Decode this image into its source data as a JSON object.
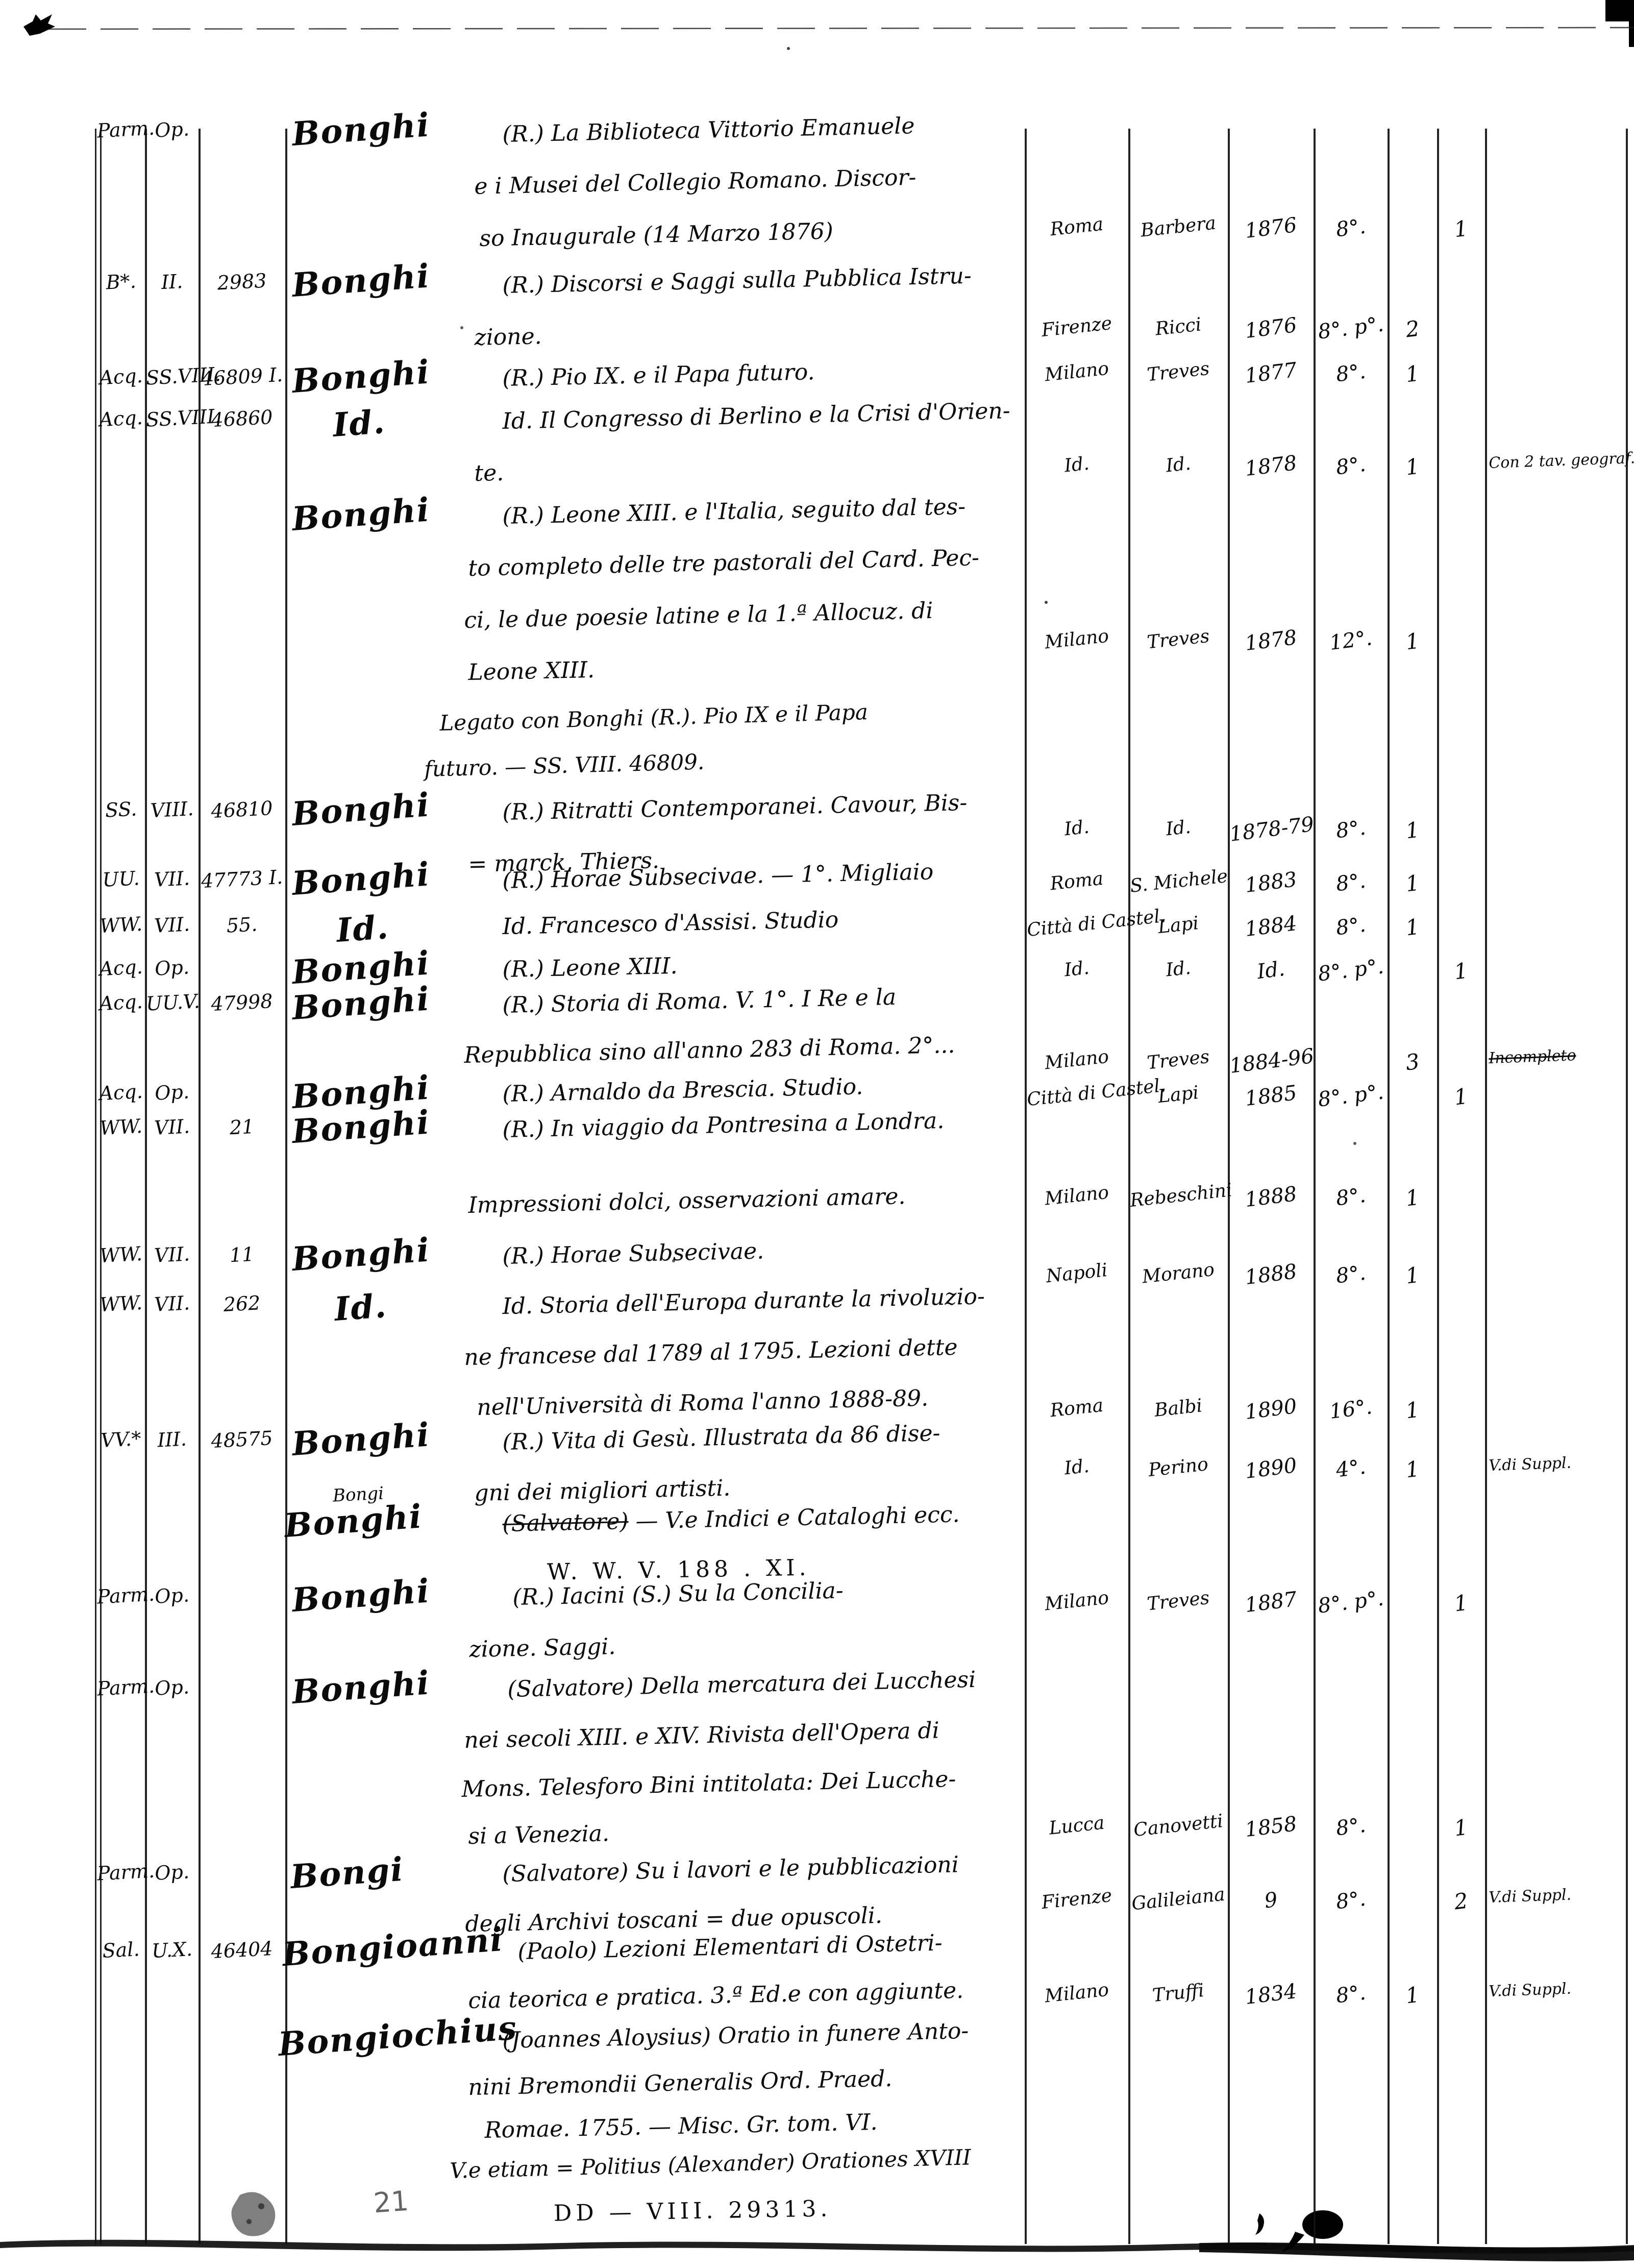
{
  "document": {
    "kind": "handwritten library catalog ledger page",
    "pencil_page_number": "21"
  },
  "entries": [
    {
      "shelfmark": {
        "series": "Parm.",
        "section": "Op.",
        "number": ""
      },
      "author": "Bonghi",
      "title_lines": [
        "(R.) La Biblioteca Vittorio Emanuele",
        "e i Musei del Collegio Romano. Discor-",
        "so Inaugurale (14 Marzo 1876)"
      ],
      "imprint": {
        "place": "Roma",
        "publisher": "Barbera",
        "year": "1876",
        "format": "8°."
      },
      "copies": {
        "volumes": "",
        "opuscoli": "1"
      },
      "note": ""
    },
    {
      "shelfmark": {
        "series": "B*.",
        "section": "II.",
        "number": "2983"
      },
      "author": "Bonghi",
      "title_lines": [
        "(R.) Discorsi e Saggi sulla Pubblica Istru-",
        "zione."
      ],
      "imprint": {
        "place": "Firenze",
        "publisher": "Ricci",
        "year": "1876",
        "format": "8°. p°."
      },
      "copies": {
        "volumes": "2",
        "opuscoli": ""
      },
      "note": ""
    },
    {
      "shelfmark": {
        "series": "Acq.",
        "section": "SS.VIII.",
        "number": "46809 I."
      },
      "author": "Bonghi",
      "title_lines": [
        "(R.) Pio IX. e il Papa futuro."
      ],
      "imprint": {
        "place": "Milano",
        "publisher": "Treves",
        "year": "1877",
        "format": "8°."
      },
      "copies": {
        "volumes": "1",
        "opuscoli": ""
      },
      "note": ""
    },
    {
      "shelfmark": {
        "series": "Acq.",
        "section": "SS.VIII.",
        "number": "46860"
      },
      "author": "Id.",
      "title_lines": [
        "Id. Il Congresso di Berlino e la Crisi d'Orien-",
        "te."
      ],
      "imprint": {
        "place": "Id.",
        "publisher": "Id.",
        "year": "1878",
        "format": "8°."
      },
      "copies": {
        "volumes": "1",
        "opuscoli": ""
      },
      "note": "Con 2 tav. geograf."
    },
    {
      "shelfmark": {
        "series": "",
        "section": "",
        "number": ""
      },
      "author": "Bonghi",
      "title_lines": [
        "(R.) Leone XIII. e l'Italia, seguito dal tes-",
        "to completo delle tre pastorali del Card. Pec-",
        "ci, le due poesie latine e la 1.ª Allocuz. di",
        "Leone XIII."
      ],
      "annotation_lines": [
        "Legato con Bonghi (R.). Pio IX e il Papa",
        "futuro. — SS. VIII. 46809."
      ],
      "imprint": {
        "place": "Milano",
        "publisher": "Treves",
        "year": "1878",
        "format": "12°."
      },
      "copies": {
        "volumes": "1",
        "opuscoli": ""
      },
      "note": ""
    },
    {
      "shelfmark": {
        "series": "SS.",
        "section": "VIII.",
        "number": "46810"
      },
      "author": "Bonghi",
      "title_lines": [
        "(R.) Ritratti Contemporanei. Cavour, Bis-",
        "= marck, Thiers."
      ],
      "imprint": {
        "place": "Id.",
        "publisher": "Id.",
        "year": "1878-79",
        "format": "8°."
      },
      "copies": {
        "volumes": "1",
        "opuscoli": ""
      },
      "note": ""
    },
    {
      "shelfmark": {
        "series": "UU.",
        "section": "VII.",
        "number": "47773 I."
      },
      "author": "Bonghi",
      "title_lines": [
        "(R.) Horae Subsecivae. — 1°. Migliaio"
      ],
      "imprint": {
        "place": "Roma",
        "publisher": "S. Michele",
        "year": "1883",
        "format": "8°."
      },
      "copies": {
        "volumes": "1",
        "opuscoli": ""
      },
      "note": ""
    },
    {
      "shelfmark": {
        "series": "WW.",
        "section": "VII.",
        "number": "55."
      },
      "author": "Id.",
      "title_lines": [
        "Id. Francesco d'Assisi. Studio"
      ],
      "imprint": {
        "place": "Città di Castel.",
        "publisher": "Lapi",
        "year": "1884",
        "format": "8°."
      },
      "copies": {
        "volumes": "1",
        "opuscoli": ""
      },
      "note": ""
    },
    {
      "shelfmark": {
        "series": "Acq.",
        "section": "Op.",
        "number": ""
      },
      "author": "Bonghi",
      "title_lines": [
        "(R.) Leone XIII."
      ],
      "imprint": {
        "place": "Id.",
        "publisher": "Id.",
        "year": "Id.",
        "format": "8°. p°."
      },
      "copies": {
        "volumes": "",
        "opuscoli": "1"
      },
      "note": ""
    },
    {
      "shelfmark": {
        "series": "Acq.",
        "section": "UU.V.",
        "number": "47998"
      },
      "author": "Bonghi",
      "title_lines": [
        "(R.) Storia di Roma. V. 1°. I Re e la",
        "Repubblica sino all'anno 283 di Roma. 2°..."
      ],
      "imprint": {
        "place": "Milano",
        "publisher": "Treves",
        "year": "1884-96",
        "format": ""
      },
      "copies": {
        "volumes": "3",
        "opuscoli": ""
      },
      "note": "Incompleto",
      "note_struck": true
    },
    {
      "shelfmark": {
        "series": "Acq.",
        "section": "Op.",
        "number": ""
      },
      "author": "Bonghi",
      "title_lines": [
        "(R.) Arnaldo da Brescia. Studio."
      ],
      "imprint": {
        "place": "Città di Castel.",
        "publisher": "Lapi",
        "year": "1885",
        "format": "8°. p°."
      },
      "copies": {
        "volumes": "",
        "opuscoli": "1"
      },
      "note": ""
    },
    {
      "shelfmark": {
        "series": "WW.",
        "section": "VII.",
        "number": "21"
      },
      "author": "Bonghi",
      "title_lines": [
        "(R.) In viaggio da Pontresina a Londra.",
        "Impressioni dolci, osservazioni amare."
      ],
      "imprint": {
        "place": "Milano",
        "publisher": "Rebeschini",
        "year": "1888",
        "format": "8°."
      },
      "copies": {
        "volumes": "1",
        "opuscoli": ""
      },
      "note": ""
    },
    {
      "shelfmark": {
        "series": "WW.",
        "section": "VII.",
        "number": "11"
      },
      "author": "Bonghi",
      "title_lines": [
        "(R.) Horae Subsecivae."
      ],
      "imprint": {
        "place": "Napoli",
        "publisher": "Morano",
        "year": "1888",
        "format": "8°."
      },
      "copies": {
        "volumes": "1",
        "opuscoli": ""
      },
      "note": ""
    },
    {
      "shelfmark": {
        "series": "WW.",
        "section": "VII.",
        "number": "262"
      },
      "author": "Id.",
      "title_lines": [
        "Id. Storia dell'Europa durante la rivoluzio-",
        "ne francese dal 1789 al 1795. Lezioni dette",
        "nell'Università di Roma l'anno 1888-89."
      ],
      "imprint": {
        "place": "Roma",
        "publisher": "Balbi",
        "year": "1890",
        "format": "16°."
      },
      "copies": {
        "volumes": "1",
        "opuscoli": ""
      },
      "note": ""
    },
    {
      "shelfmark": {
        "series": "VV.*",
        "section": "III.",
        "number": "48575"
      },
      "author": "Bonghi",
      "title_lines": [
        "(R.) Vita di Gesù. Illustrata da 86 dise-",
        "gni dei migliori artisti."
      ],
      "imprint": {
        "place": "Id.",
        "publisher": "Perino",
        "year": "1890",
        "format": "4°."
      },
      "copies": {
        "volumes": "1",
        "opuscoli": ""
      },
      "note": "V.di Suppl."
    },
    {
      "shelfmark": {
        "series": "",
        "section": "",
        "number": ""
      },
      "author": "Bonghi",
      "author_correction": "Bongi",
      "title_struck": "(Salvatore)",
      "title_rest": " — V.e Indici e Cataloghi ecc.",
      "reference_line": "W. W. V. 188 . XI.",
      "imprint": {
        "place": "",
        "publisher": "",
        "year": "",
        "format": ""
      },
      "copies": {
        "volumes": "",
        "opuscoli": ""
      },
      "note": ""
    },
    {
      "shelfmark": {
        "series": "Parm.",
        "section": "Op.",
        "number": ""
      },
      "author": "Bonghi",
      "title_lines": [
        "(R.) Iacini (S.) Su la Concilia-",
        "zione. Saggi."
      ],
      "imprint": {
        "place": "Milano",
        "publisher": "Treves",
        "year": "1887",
        "format": "8°. p°."
      },
      "copies": {
        "volumes": "",
        "opuscoli": "1"
      },
      "note": ""
    },
    {
      "shelfmark": {
        "series": "Parm.",
        "section": "Op.",
        "number": ""
      },
      "author": "Bonghi",
      "title_lines": [
        "(Salvatore) Della mercatura dei Lucchesi",
        "nei secoli XIII. e XIV. Rivista dell'Opera di",
        "Mons. Telesforo Bini intitolata: Dei Lucche-",
        "si a Venezia."
      ],
      "imprint": {
        "place": "Lucca",
        "publisher": "Canovetti",
        "year": "1858",
        "format": "8°."
      },
      "copies": {
        "volumes": "",
        "opuscoli": "1"
      },
      "note": ""
    },
    {
      "shelfmark": {
        "series": "Parm.",
        "section": "Op.",
        "number": ""
      },
      "author": "Bongi",
      "title_lines": [
        "(Salvatore) Su i lavori e le pubblicazioni",
        "degli Archivi toscani = due opuscoli."
      ],
      "imprint": {
        "place": "Firenze",
        "publisher": "Galileiana",
        "year": "9",
        "format": "8°."
      },
      "copies": {
        "volumes": "",
        "opuscoli": "2"
      },
      "note": "V.di Suppl."
    },
    {
      "shelfmark": {
        "series": "Sal.",
        "section": "U.X.",
        "number": "46404"
      },
      "author": "Bongioanni",
      "title_lines": [
        "(Paolo) Lezioni Elementari di Ostetri-",
        "cia teorica e pratica. 3.ª Ed.e con aggiunte."
      ],
      "imprint": {
        "place": "Milano",
        "publisher": "Truffi",
        "year": "1834",
        "format": "8°."
      },
      "copies": {
        "volumes": "1",
        "opuscoli": ""
      },
      "note": "V.di Suppl."
    },
    {
      "shelfmark": {
        "series": "",
        "section": "",
        "number": ""
      },
      "author": "Bongiochius",
      "title_lines": [
        "(Joannes Aloysius) Oratio in funere Anto-",
        "nini Bremondii Generalis Ord. Praed.",
        "Romae. 1755. — Misc. Gr. tom. VI."
      ],
      "annotation_lines": [
        "V.e etiam = Politius (Alexander) Orationes XVIII"
      ],
      "reference_line": "DD — VIII. 29313.",
      "imprint": {
        "place": "",
        "publisher": "",
        "year": "",
        "format": ""
      },
      "copies": {
        "volumes": "",
        "opuscoli": ""
      },
      "note": ""
    }
  ]
}
